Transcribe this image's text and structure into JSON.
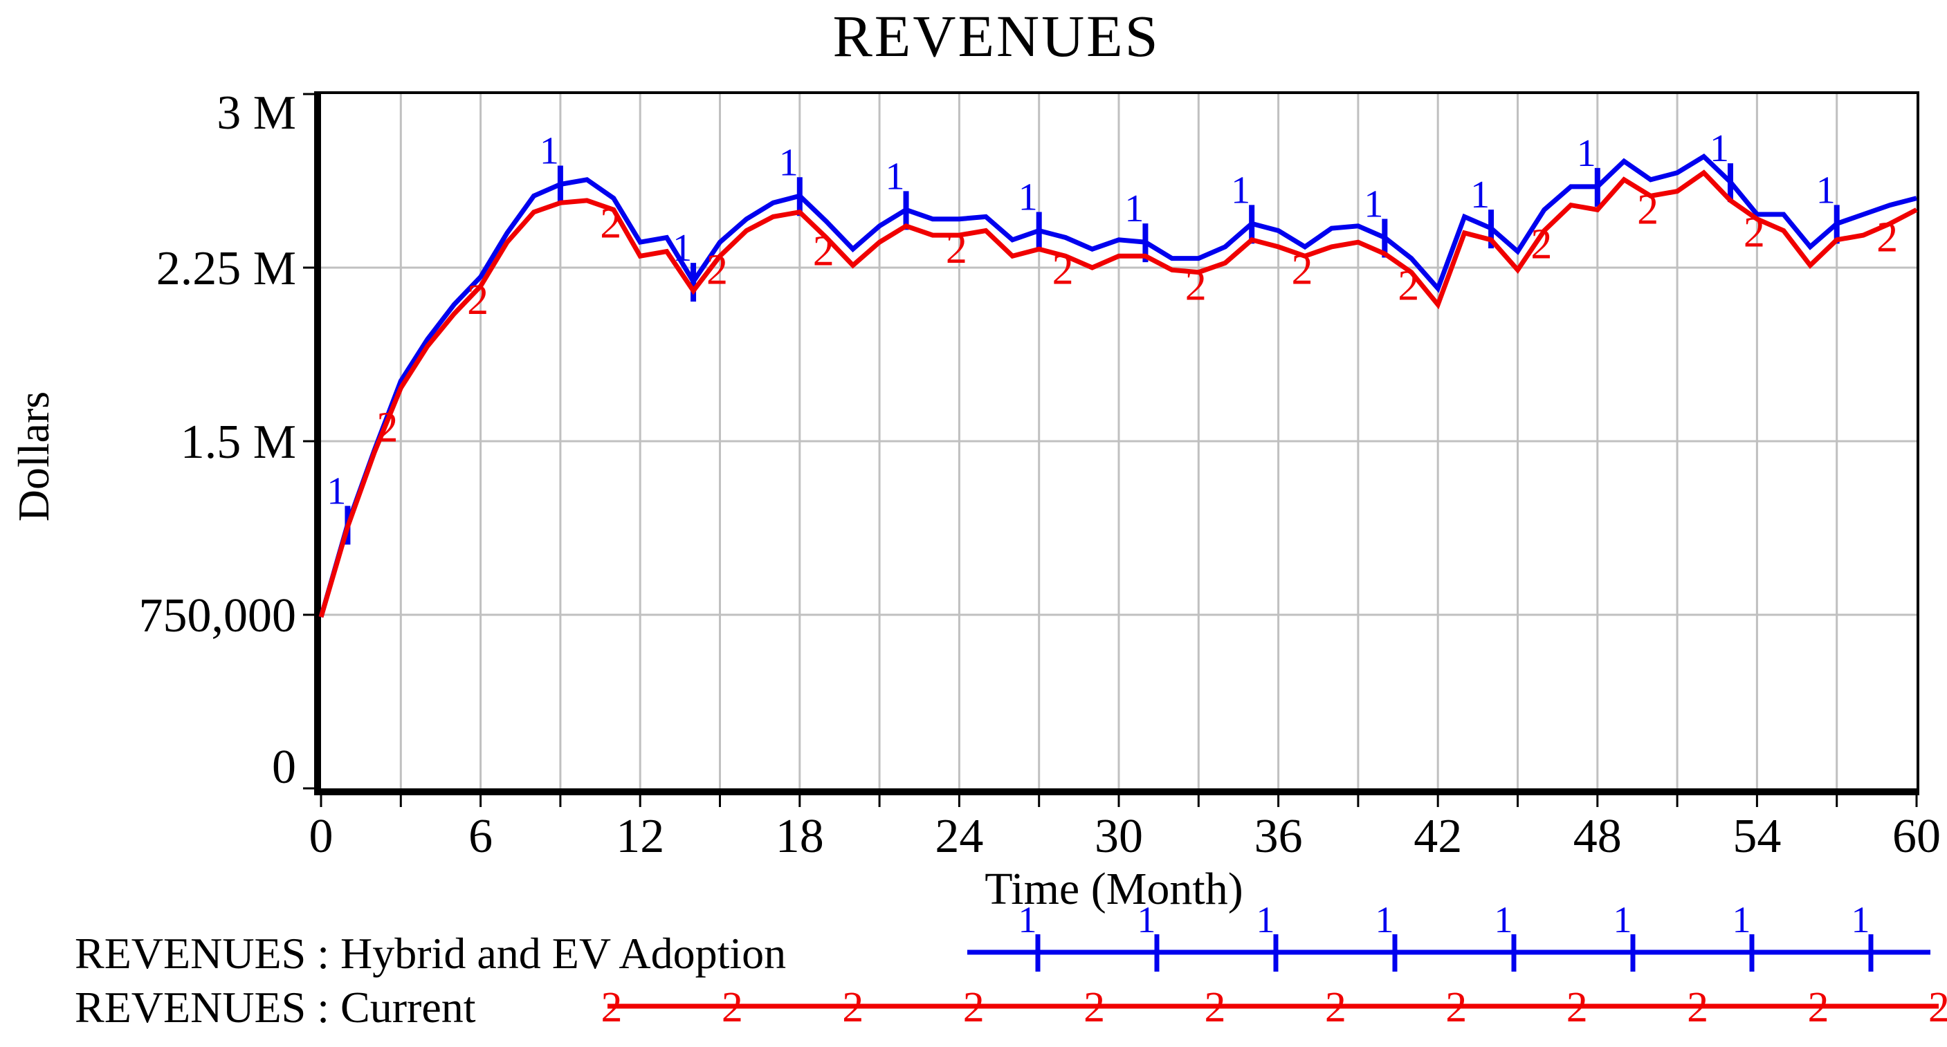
{
  "title": "REVENUES",
  "colors": {
    "series1": "#0000ee",
    "series2": "#f00000",
    "grid": "#c0c0c0",
    "axis": "#000000",
    "background": "#ffffff"
  },
  "legend": {
    "items": [
      {
        "label": "REVENUES : Hybrid and EV Adoption",
        "marker_digit": "1",
        "color": "#0000ee"
      },
      {
        "label": "REVENUES : Current",
        "marker_digit": "2",
        "color": "#f00000"
      }
    ]
  },
  "chart_data": {
    "type": "line",
    "title": "REVENUES",
    "xlabel": "Time (Month)",
    "ylabel": "Dollars",
    "xlim": [
      0,
      60
    ],
    "ylim": [
      0,
      3000000
    ],
    "grid": true,
    "x_grid_step": 3,
    "x_tick_step": 6,
    "x_ticks": [
      0,
      6,
      12,
      18,
      24,
      30,
      36,
      42,
      48,
      54,
      60
    ],
    "y_ticks": [
      {
        "value": 3000000,
        "label": "3 M"
      },
      {
        "value": 2250000,
        "label": "2.25 M"
      },
      {
        "value": 1500000,
        "label": "1.5 M"
      },
      {
        "value": 750000,
        "label": "750,000"
      },
      {
        "value": 0,
        "label": "0"
      }
    ],
    "x_start": 0,
    "x_step": 1,
    "value_unit": "millions of Dollars",
    "series": [
      {
        "name": "REVENUES : Hybrid and EV Adoption",
        "marker_digit": "1",
        "color": "#0000ee",
        "values_millions": [
          0.74,
          1.14,
          1.46,
          1.76,
          1.94,
          2.09,
          2.21,
          2.4,
          2.56,
          2.61,
          2.63,
          2.55,
          2.36,
          2.38,
          2.19,
          2.36,
          2.46,
          2.53,
          2.56,
          2.45,
          2.33,
          2.43,
          2.5,
          2.46,
          2.46,
          2.47,
          2.37,
          2.41,
          2.38,
          2.33,
          2.37,
          2.36,
          2.29,
          2.29,
          2.34,
          2.44,
          2.41,
          2.34,
          2.42,
          2.43,
          2.38,
          2.29,
          2.16,
          2.47,
          2.42,
          2.32,
          2.5,
          2.6,
          2.6,
          2.71,
          2.63,
          2.66,
          2.73,
          2.62,
          2.48,
          2.48,
          2.34,
          2.44,
          2.48,
          2.52,
          2.55
        ],
        "marker_x": [
          1,
          9,
          14,
          18,
          22,
          27,
          31,
          35,
          40,
          44,
          48,
          53,
          57
        ]
      },
      {
        "name": "REVENUES : Current",
        "marker_digit": "2",
        "color": "#f00000",
        "values_millions": [
          0.74,
          1.13,
          1.45,
          1.73,
          1.91,
          2.05,
          2.17,
          2.36,
          2.49,
          2.53,
          2.54,
          2.5,
          2.3,
          2.32,
          2.15,
          2.3,
          2.41,
          2.47,
          2.49,
          2.38,
          2.26,
          2.36,
          2.43,
          2.39,
          2.39,
          2.41,
          2.3,
          2.33,
          2.3,
          2.25,
          2.3,
          2.3,
          2.24,
          2.23,
          2.27,
          2.37,
          2.34,
          2.3,
          2.34,
          2.36,
          2.31,
          2.23,
          2.09,
          2.4,
          2.37,
          2.24,
          2.41,
          2.52,
          2.5,
          2.63,
          2.56,
          2.58,
          2.66,
          2.54,
          2.46,
          2.41,
          2.26,
          2.37,
          2.39,
          2.44,
          2.5
        ],
        "marker_x": [
          2.6,
          6,
          11,
          15,
          19,
          24,
          28,
          33,
          37,
          41,
          46,
          50,
          54,
          59
        ]
      }
    ]
  }
}
